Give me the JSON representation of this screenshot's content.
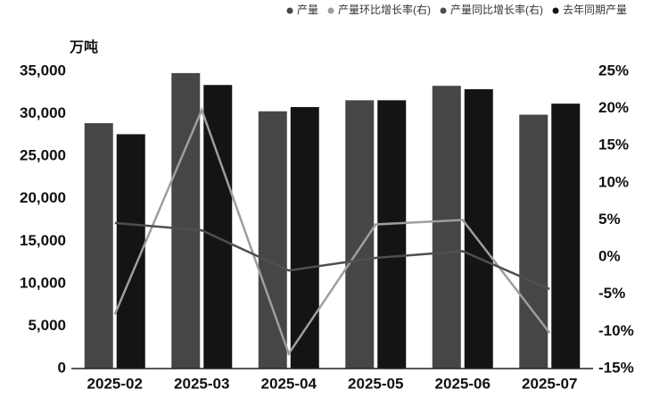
{
  "chart_data": {
    "type": "bar_line",
    "y_label": "万吨",
    "categories": [
      "2025-02",
      "2025-03",
      "2025-04",
      "2025-05",
      "2025-06",
      "2025-07"
    ],
    "series": [
      {
        "name": "产量",
        "type": "bar",
        "color": "#464646",
        "values": [
          28900,
          34800,
          30300,
          31600,
          33300,
          29900
        ]
      },
      {
        "name": "产量环比增长率(右)",
        "type": "line",
        "axis": "y2",
        "color": "#9e9e9e",
        "values": [
          -7.7,
          19.8,
          -13.0,
          4.4,
          5.0,
          -10.2
        ]
      },
      {
        "name": "产量同比增长率(右)",
        "type": "line",
        "axis": "y2",
        "color": "#4f4f4f",
        "values": [
          4.6,
          3.6,
          -1.8,
          -0.1,
          0.8,
          -4.3
        ]
      },
      {
        "name": "去年同期产量",
        "type": "bar",
        "color": "#141414",
        "values": [
          27600,
          33400,
          30800,
          31600,
          32900,
          31200
        ]
      }
    ],
    "ylim": [
      0,
      35000
    ],
    "yticks": [
      0,
      {
        "value": 5000,
        "label": "5,000"
      },
      {
        "value": 10000,
        "label": "10,000"
      },
      {
        "value": 15000,
        "label": "15,000"
      },
      {
        "value": 20000,
        "label": "20,000"
      },
      {
        "value": 25000,
        "label": "25,000"
      },
      {
        "value": 30000,
        "label": "30,000"
      },
      {
        "value": 35000,
        "label": "35,000"
      }
    ],
    "y2lim": [
      -15,
      25
    ],
    "y2ticks": [
      {
        "value": -15,
        "label": "-15%"
      },
      {
        "value": -10,
        "label": "-10%"
      },
      {
        "value": -5,
        "label": "-5%"
      },
      {
        "value": 0,
        "label": "0%"
      },
      {
        "value": 5,
        "label": "5%"
      },
      {
        "value": 10,
        "label": "10%"
      },
      {
        "value": 15,
        "label": "15%"
      },
      {
        "value": 20,
        "label": "20%"
      },
      {
        "value": 25,
        "label": "25%"
      }
    ],
    "legend": "top-right"
  }
}
